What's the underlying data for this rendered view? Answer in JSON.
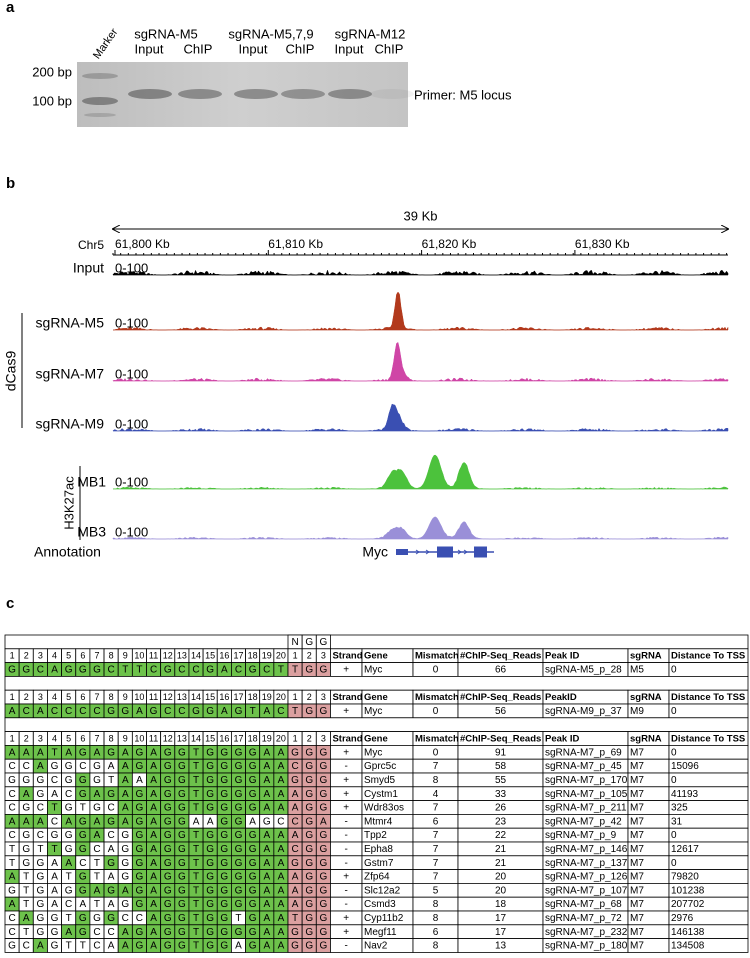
{
  "panel_a": {
    "label": "a",
    "marker": "Marker",
    "groups": [
      {
        "name": "sgRNA-M5",
        "lanes": [
          "Input",
          "ChIP"
        ]
      },
      {
        "name": "sgRNA-M5,7,9",
        "lanes": [
          "Input",
          "ChIP"
        ]
      },
      {
        "name": "sgRNA-M12",
        "lanes": [
          "Input",
          "ChIP"
        ]
      }
    ],
    "size_labels": [
      "200 bp",
      "100 bp"
    ],
    "note": "Primer: M5 locus"
  },
  "panel_b": {
    "label": "b",
    "span": "39 Kb",
    "chrom": "Chr5",
    "ticks": [
      "61,800 Kb",
      "61,810 Kb",
      "61,820 Kb",
      "61,830 Kb"
    ],
    "tracks": [
      {
        "name": "Input",
        "range": "0-100",
        "color": "#000000"
      },
      {
        "name": "sgRNA-M5",
        "range": "0-100",
        "color": "#b2391c"
      },
      {
        "name": "sgRNA-M7",
        "range": "0-100",
        "color": "#cf45a6"
      },
      {
        "name": "sgRNA-M9",
        "range": "0-100",
        "color": "#3a4fb2"
      },
      {
        "name": "MB1",
        "range": "0-100",
        "color": "#4cc23c"
      },
      {
        "name": "MB3",
        "range": "0-100",
        "color": "#9a8fd8"
      }
    ],
    "groups": [
      "dCas9",
      "H3K27ac"
    ],
    "annotation": {
      "label": "Annotation",
      "gene": "Myc",
      "color": "#3a4fb2"
    }
  },
  "panel_c": {
    "label": "c",
    "pam_header": [
      "N",
      "G",
      "G"
    ],
    "pam_header_color": "#e0463a",
    "match_color": "#6dc24b",
    "pam_color": "#dba0a0",
    "positions": [
      1,
      2,
      3,
      4,
      5,
      6,
      7,
      8,
      9,
      10,
      11,
      12,
      13,
      14,
      15,
      16,
      17,
      18,
      19,
      20,
      1,
      2,
      3
    ],
    "blocks": [
      {
        "columns": [
          "Strand",
          "Gene",
          "Mismatch",
          "#ChIP-Seq_Reads",
          "Peak ID",
          "sgRNA",
          "Distance To TSS"
        ],
        "rows": [
          {
            "sequence": "GGCAGGGCTTCGCCGACGCT",
            "pam": "TGG",
            "cells": [
              "+",
              "Myc",
              0,
              66,
              "sgRNA-M5_p_28",
              "M5",
              0
            ]
          }
        ]
      },
      {
        "columns": [
          "Strand",
          "Gene",
          "Mismatch",
          "#ChIP-Seq_Reads",
          "PeakID",
          "sgRNA",
          "Distance To TSS"
        ],
        "rows": [
          {
            "sequence": "ACACCCCGGAGCCGGAGTAC",
            "pam": "TGG",
            "cells": [
              "+",
              "Myc",
              0,
              56,
              "sgRNA-M9_p_37",
              "M9",
              0
            ]
          }
        ]
      },
      {
        "columns": [
          "Strand",
          "Gene",
          "Mismatch",
          "#ChIP-Seq_Reads",
          "Peak ID",
          "sgRNA",
          "Distance To TSS"
        ],
        "rows": [
          {
            "sequence": "AAATAGAGAGAGGTGGGGAA",
            "pam": "GGG",
            "cells": [
              "+",
              "Myc",
              0,
              91,
              "sgRNA-M7_p_69",
              "M7",
              0
            ]
          },
          {
            "sequence": "CCAGGCGAAGAGGTGGGGAA",
            "pam": "CGG",
            "cells": [
              "-",
              "Gprc5c",
              7,
              58,
              "sgRNA-M7_p_45",
              "M7",
              15096
            ]
          },
          {
            "sequence": "GGGCGGGTAAAGGTGGGGAA",
            "pam": "GGG",
            "cells": [
              "+",
              "Smyd5",
              8,
              55,
              "sgRNA-M7_p_170",
              "M7",
              0
            ]
          },
          {
            "sequence": "CAGACGAGAGAGGTGGGGAA",
            "pam": "AGG",
            "cells": [
              "+",
              "Cystm1",
              4,
              33,
              "sgRNA-M7_p_105",
              "M7",
              41193
            ]
          },
          {
            "sequence": "CGCTGTGCAGAGGTGGGGAA",
            "pam": "AGG",
            "cells": [
              "+",
              "Wdr83os",
              7,
              26,
              "sgRNA-M7_p_211",
              "M7",
              325
            ]
          },
          {
            "sequence": "AAACAGAGAGAGGAAGGAGC",
            "pam": "CGA",
            "cells": [
              "-",
              "Mtmr4",
              6,
              23,
              "sgRNA-M7_p_42",
              "M7",
              31
            ]
          },
          {
            "sequence": "CGCGGGACGGAGGTGGGGAA",
            "pam": "AGG",
            "cells": [
              "-",
              "Tpp2",
              7,
              22,
              "sgRNA-M7_p_9",
              "M7",
              0
            ]
          },
          {
            "sequence": "TGTTGGCAGGAGGTGGGGAA",
            "pam": "CGG",
            "cells": [
              "-",
              "Epha8",
              7,
              21,
              "sgRNA-M7_p_146",
              "M7",
              12617
            ]
          },
          {
            "sequence": "TGGAACTGGGAGGTGGGGAA",
            "pam": "GGG",
            "cells": [
              "-",
              "Gstm7",
              7,
              21,
              "sgRNA-M7_p_137",
              "M7",
              0
            ]
          },
          {
            "sequence": "ATGATGTAGGAGGTGGGGAA",
            "pam": "AGG",
            "cells": [
              "+",
              "Zfp64",
              7,
              20,
              "sgRNA-M7_p_126",
              "M7",
              79820
            ]
          },
          {
            "sequence": "GTGAGGAGAGAGGTGGGGAA",
            "pam": "AGG",
            "cells": [
              "-",
              "Slc12a2",
              5,
              20,
              "sgRNA-M7_p_107",
              "M7",
              101238
            ]
          },
          {
            "sequence": "ATGACATAGGAGGTGGGGAA",
            "pam": "AGG",
            "cells": [
              "-",
              "Csmd3",
              8,
              18,
              "sgRNA-M7_p_68",
              "M7",
              207702
            ]
          },
          {
            "sequence": "CAGGTGGGCCAGGTGGTGAA",
            "pam": "TGG",
            "cells": [
              "+",
              "Cyp11b2",
              8,
              17,
              "sgRNA-M7_p_72",
              "M7",
              2976
            ]
          },
          {
            "sequence": "CTGGAGCCAGAGGTGGGGAA",
            "pam": "GGG",
            "cells": [
              "+",
              "Megf11",
              6,
              17,
              "sgRNA-M7_p_232",
              "M7",
              146138
            ]
          },
          {
            "sequence": "GCAGTTCAAGAGGTGGAGAA",
            "pam": "GGG",
            "cells": [
              "-",
              "Nav2",
              8,
              13,
              "sgRNA-M7_p_180",
              "M7",
              134508
            ]
          }
        ]
      }
    ]
  }
}
